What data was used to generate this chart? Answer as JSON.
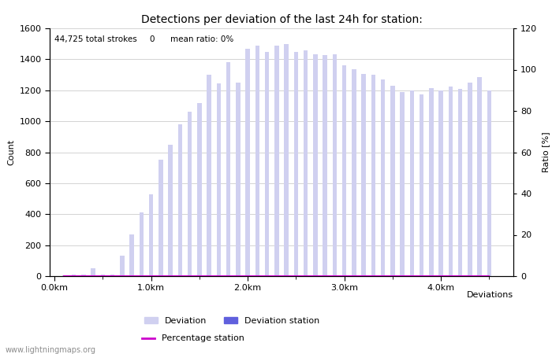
{
  "title": "Detections per deviation of the last 24h for station:",
  "subtitle": "44,725 total strokes     0      mean ratio: 0%",
  "ylabel_left": "Count",
  "ylabel_right": "Ratio [%]",
  "xlabel": "Deviations",
  "bar_width": 0.045,
  "bar_color": "#d0d0f0",
  "bar_station_color": "#6060dd",
  "line_color": "#cc00cc",
  "ylim_left": [
    0,
    1600
  ],
  "ylim_right": [
    0,
    120
  ],
  "yticks_left": [
    0,
    200,
    400,
    600,
    800,
    1000,
    1200,
    1400,
    1600
  ],
  "yticks_right": [
    0,
    20,
    40,
    60,
    80,
    100,
    120
  ],
  "xlim": [
    -0.05,
    4.75
  ],
  "major_xtick_positions": [
    0.0,
    1.0,
    2.0,
    3.0,
    4.0
  ],
  "major_xtick_labels": [
    "0.0km",
    "1.0km",
    "2.0km",
    "3.0km",
    "4.0km"
  ],
  "minor_xtick_positions": [
    0.5,
    1.5,
    2.5,
    3.5,
    4.5
  ],
  "x_positions": [
    0.1,
    0.2,
    0.3,
    0.4,
    0.5,
    0.6,
    0.7,
    0.8,
    0.9,
    1.0,
    1.1,
    1.2,
    1.3,
    1.4,
    1.5,
    1.6,
    1.7,
    1.8,
    1.9,
    2.0,
    2.1,
    2.2,
    2.3,
    2.4,
    2.5,
    2.6,
    2.7,
    2.8,
    2.9,
    3.0,
    3.1,
    3.2,
    3.3,
    3.4,
    3.5,
    3.6,
    3.7,
    3.8,
    3.9,
    4.0,
    4.1,
    4.2,
    4.3,
    4.4,
    4.5
  ],
  "bar_values": [
    5,
    10,
    10,
    50,
    10,
    10,
    130,
    270,
    410,
    530,
    750,
    850,
    980,
    1060,
    1115,
    1300,
    1245,
    1380,
    1250,
    1470,
    1490,
    1450,
    1490,
    1500,
    1450,
    1460,
    1430,
    1425,
    1430,
    1360,
    1335,
    1305,
    1300,
    1270,
    1230,
    1190,
    1200,
    1175,
    1215,
    1200,
    1225,
    1210,
    1250,
    1285,
    1200
  ],
  "station_bar_values": [
    0,
    0,
    0,
    0,
    0,
    0,
    0,
    0,
    0,
    0,
    0,
    0,
    0,
    0,
    0,
    0,
    0,
    0,
    0,
    0,
    0,
    0,
    0,
    0,
    0,
    0,
    0,
    0,
    0,
    0,
    0,
    0,
    0,
    0,
    0,
    0,
    0,
    0,
    0,
    0,
    0,
    0,
    0,
    0,
    0
  ],
  "percentage_values": [
    0,
    0,
    0,
    0,
    0,
    0,
    0,
    0,
    0,
    0,
    0,
    0,
    0,
    0,
    0,
    0,
    0,
    0,
    0,
    0,
    0,
    0,
    0,
    0,
    0,
    0,
    0,
    0,
    0,
    0,
    0,
    0,
    0,
    0,
    0,
    0,
    0,
    0,
    0,
    0,
    0,
    0,
    0,
    0,
    0
  ],
  "legend_deviation_label": "Deviation",
  "legend_station_label": "Deviation station",
  "legend_pct_label": "Percentage station",
  "watermark": "www.lightningmaps.org",
  "bg_color": "#ffffff",
  "grid_color": "#cccccc",
  "font_size_title": 10,
  "font_size_axis": 8,
  "font_size_subtitle": 7.5,
  "font_size_watermark": 7,
  "font_size_legend": 8
}
